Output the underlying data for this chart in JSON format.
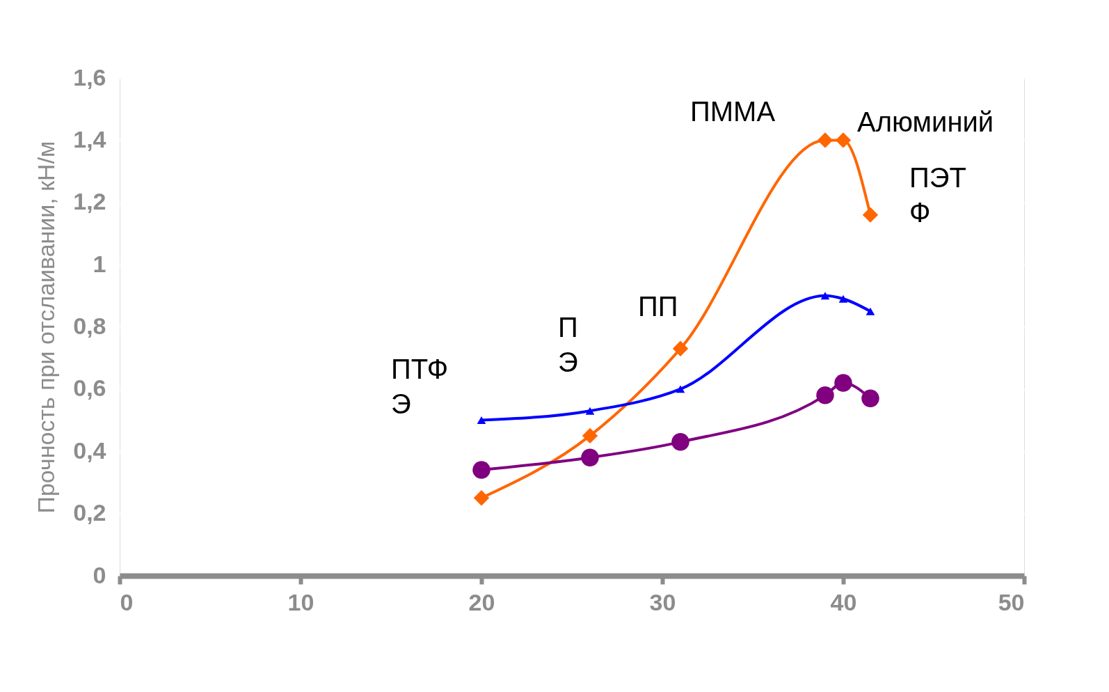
{
  "chart_data": {
    "type": "line",
    "ylabel": "Прочность при отслаивании, кН/м",
    "xlim": [
      0,
      50
    ],
    "xticks": [
      0,
      10,
      20,
      30,
      40,
      50
    ],
    "ylim": [
      0,
      1.6
    ],
    "yticks": [
      0,
      {
        "value": 0.2,
        "label": "0,2"
      },
      {
        "value": 0.4,
        "label": "0,4"
      },
      {
        "value": 0.6,
        "label": "0,6"
      },
      {
        "value": 0.8,
        "label": "0,8"
      },
      1,
      {
        "value": 1.2,
        "label": "1,2"
      },
      {
        "value": 1.4,
        "label": "1,4"
      },
      {
        "value": 1.6,
        "label": "1,6"
      }
    ],
    "grid": "y",
    "series": [
      {
        "color": "#ff6600",
        "marker": "diamond",
        "x": [
          20,
          26,
          31,
          39,
          40,
          41.5
        ],
        "values": [
          0.25,
          0.45,
          0.73,
          1.4,
          1.4,
          1.16
        ]
      },
      {
        "color": "#0000ff",
        "marker": "triangle",
        "x": [
          20,
          26,
          31,
          39,
          40,
          41.5
        ],
        "values": [
          0.5,
          0.53,
          0.6,
          0.9,
          0.89,
          0.85
        ]
      },
      {
        "color": "#800080",
        "marker": "circle",
        "x": [
          20,
          26,
          31,
          39,
          40,
          41.5
        ],
        "values": [
          0.34,
          0.38,
          0.43,
          0.58,
          0.62,
          0.57
        ]
      }
    ],
    "annotations": [
      "ПТФ\nЭ",
      "П\nЭ",
      "ПП",
      "ПММА",
      "Алюминий",
      "ПЭТ\nФ"
    ]
  }
}
